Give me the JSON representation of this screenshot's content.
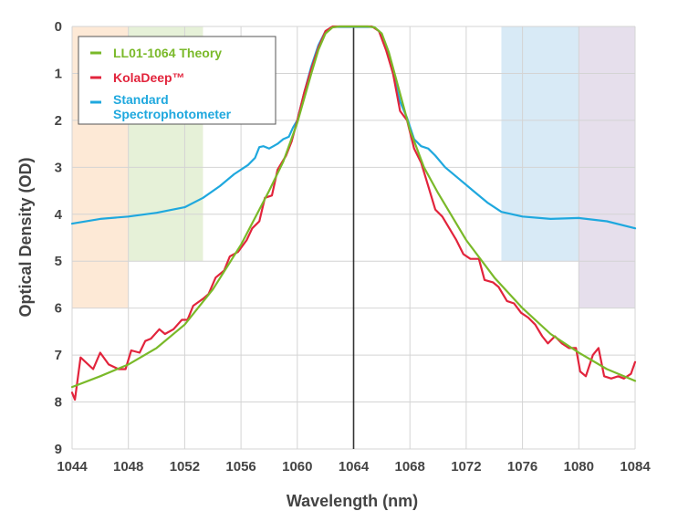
{
  "chart_data": {
    "type": "line",
    "xlabel": "Wavelength (nm)",
    "ylabel": "Optical Density (OD)",
    "xlim": [
      1044,
      1084
    ],
    "ylim": [
      0,
      9
    ],
    "y_inverted": true,
    "grid": true,
    "legend_position": "top-left",
    "x_ticks": [
      "1044",
      "1048",
      "1052",
      "1056",
      "1060",
      "1064",
      "1068",
      "1072",
      "1076",
      "1080",
      "1084"
    ],
    "y_ticks": [
      "0",
      "1",
      "2",
      "3",
      "4",
      "5",
      "6",
      "7",
      "8",
      "9"
    ],
    "center_line_x": 1064,
    "shaded_regions": [
      {
        "x": [
          1044,
          1048
        ],
        "y": [
          0,
          6
        ],
        "color": "#fde9d6"
      },
      {
        "x": [
          1048,
          1053.3
        ],
        "y": [
          0,
          5
        ],
        "color": "#e6f1d8"
      },
      {
        "x": [
          1074.5,
          1080
        ],
        "y": [
          0,
          5
        ],
        "color": "#d8eaf6"
      },
      {
        "x": [
          1080,
          1084
        ],
        "y": [
          0,
          6
        ],
        "color": "#e6dfec"
      }
    ],
    "series": [
      {
        "name": "LL01-1064 Theory",
        "color": "#7ab929",
        "points": [
          [
            1044,
            7.68
          ],
          [
            1046,
            7.45
          ],
          [
            1048,
            7.2
          ],
          [
            1050,
            6.85
          ],
          [
            1052,
            6.35
          ],
          [
            1054,
            5.6
          ],
          [
            1056,
            4.65
          ],
          [
            1058,
            3.5
          ],
          [
            1059,
            2.88
          ],
          [
            1060,
            2.05
          ],
          [
            1061,
            1.0
          ],
          [
            1061.5,
            0.5
          ],
          [
            1062,
            0.15
          ],
          [
            1062.5,
            0.02
          ],
          [
            1063,
            0.0
          ],
          [
            1065,
            0.0
          ],
          [
            1065.5,
            0.02
          ],
          [
            1066,
            0.15
          ],
          [
            1066.5,
            0.55
          ],
          [
            1067,
            1.1
          ],
          [
            1068,
            2.2
          ],
          [
            1069,
            3.0
          ],
          [
            1070,
            3.55
          ],
          [
            1072,
            4.55
          ],
          [
            1074,
            5.35
          ],
          [
            1076,
            6.0
          ],
          [
            1078,
            6.55
          ],
          [
            1080,
            6.95
          ],
          [
            1082,
            7.3
          ],
          [
            1084,
            7.55
          ]
        ]
      },
      {
        "name": "KolaDeep™",
        "color": "#e2243c",
        "points": [
          [
            1044,
            7.8
          ],
          [
            1044.2,
            7.95
          ],
          [
            1044.6,
            7.05
          ],
          [
            1045.5,
            7.3
          ],
          [
            1046,
            6.95
          ],
          [
            1046.6,
            7.2
          ],
          [
            1047.3,
            7.3
          ],
          [
            1047.8,
            7.3
          ],
          [
            1048.2,
            6.9
          ],
          [
            1048.8,
            6.95
          ],
          [
            1049.2,
            6.7
          ],
          [
            1049.6,
            6.65
          ],
          [
            1050.2,
            6.45
          ],
          [
            1050.6,
            6.55
          ],
          [
            1051.2,
            6.45
          ],
          [
            1051.8,
            6.25
          ],
          [
            1052.2,
            6.25
          ],
          [
            1052.6,
            5.95
          ],
          [
            1053.3,
            5.8
          ],
          [
            1053.7,
            5.7
          ],
          [
            1054.2,
            5.35
          ],
          [
            1054.8,
            5.2
          ],
          [
            1055.2,
            4.9
          ],
          [
            1055.8,
            4.8
          ],
          [
            1056.4,
            4.55
          ],
          [
            1056.8,
            4.3
          ],
          [
            1057.3,
            4.15
          ],
          [
            1057.7,
            3.65
          ],
          [
            1058.2,
            3.6
          ],
          [
            1058.6,
            3.05
          ],
          [
            1059.2,
            2.75
          ],
          [
            1059.6,
            2.45
          ],
          [
            1060,
            2.0
          ],
          [
            1060.5,
            1.4
          ],
          [
            1061,
            0.9
          ],
          [
            1061.5,
            0.45
          ],
          [
            1062,
            0.1
          ],
          [
            1062.5,
            0.0
          ],
          [
            1065.3,
            0.0
          ],
          [
            1065.8,
            0.1
          ],
          [
            1066.3,
            0.5
          ],
          [
            1066.8,
            1.0
          ],
          [
            1067.3,
            1.8
          ],
          [
            1067.8,
            2.0
          ],
          [
            1068.3,
            2.6
          ],
          [
            1068.8,
            2.9
          ],
          [
            1069.3,
            3.4
          ],
          [
            1069.8,
            3.9
          ],
          [
            1070.3,
            4.05
          ],
          [
            1070.8,
            4.3
          ],
          [
            1071.3,
            4.55
          ],
          [
            1071.8,
            4.85
          ],
          [
            1072.3,
            4.95
          ],
          [
            1072.9,
            4.95
          ],
          [
            1073.3,
            5.4
          ],
          [
            1073.9,
            5.45
          ],
          [
            1074.3,
            5.55
          ],
          [
            1074.9,
            5.85
          ],
          [
            1075.4,
            5.9
          ],
          [
            1075.9,
            6.1
          ],
          [
            1076.4,
            6.2
          ],
          [
            1076.9,
            6.35
          ],
          [
            1077.4,
            6.6
          ],
          [
            1077.8,
            6.75
          ],
          [
            1078.3,
            6.6
          ],
          [
            1078.8,
            6.75
          ],
          [
            1079.3,
            6.85
          ],
          [
            1079.8,
            6.85
          ],
          [
            1080.1,
            7.35
          ],
          [
            1080.5,
            7.45
          ],
          [
            1081,
            7.0
          ],
          [
            1081.4,
            6.85
          ],
          [
            1081.8,
            7.45
          ],
          [
            1082.3,
            7.5
          ],
          [
            1082.8,
            7.45
          ],
          [
            1083.2,
            7.5
          ],
          [
            1083.7,
            7.4
          ],
          [
            1084,
            7.15
          ]
        ]
      },
      {
        "name": "Standard Spectrophotometer",
        "color": "#1fa8de",
        "points": [
          [
            1044,
            4.2
          ],
          [
            1046,
            4.1
          ],
          [
            1048,
            4.05
          ],
          [
            1050,
            3.97
          ],
          [
            1052,
            3.85
          ],
          [
            1053.3,
            3.65
          ],
          [
            1054.5,
            3.4
          ],
          [
            1055.5,
            3.15
          ],
          [
            1056.5,
            2.95
          ],
          [
            1057,
            2.8
          ],
          [
            1057.3,
            2.57
          ],
          [
            1057.6,
            2.55
          ],
          [
            1058,
            2.6
          ],
          [
            1058.3,
            2.55
          ],
          [
            1058.6,
            2.5
          ],
          [
            1059,
            2.4
          ],
          [
            1059.4,
            2.35
          ],
          [
            1059.7,
            2.15
          ],
          [
            1060,
            2.0
          ],
          [
            1060.5,
            1.4
          ],
          [
            1061,
            0.85
          ],
          [
            1061.5,
            0.4
          ],
          [
            1062,
            0.1
          ],
          [
            1062.5,
            0.01
          ],
          [
            1065.4,
            0.01
          ],
          [
            1065.8,
            0.1
          ],
          [
            1066.3,
            0.45
          ],
          [
            1066.8,
            1.0
          ],
          [
            1067.3,
            1.6
          ],
          [
            1067.8,
            1.95
          ],
          [
            1068.3,
            2.4
          ],
          [
            1068.8,
            2.55
          ],
          [
            1069.3,
            2.6
          ],
          [
            1069.8,
            2.75
          ],
          [
            1070.5,
            3.0
          ],
          [
            1071.5,
            3.25
          ],
          [
            1072.5,
            3.5
          ],
          [
            1073.5,
            3.75
          ],
          [
            1074.5,
            3.95
          ],
          [
            1076,
            4.05
          ],
          [
            1078,
            4.1
          ],
          [
            1080,
            4.08
          ],
          [
            1082,
            4.15
          ],
          [
            1084,
            4.3
          ]
        ]
      }
    ]
  }
}
